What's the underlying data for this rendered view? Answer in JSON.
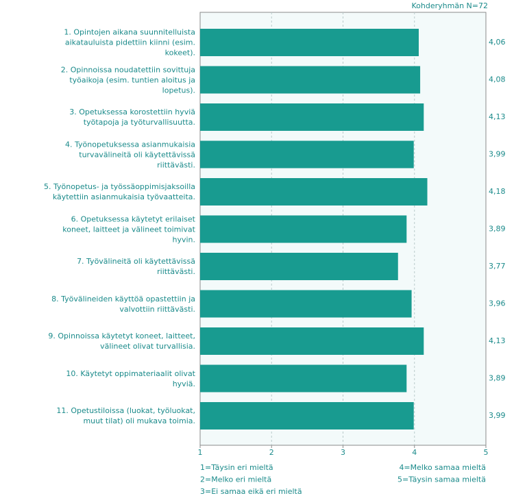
{
  "chart_data": {
    "type": "bar",
    "orientation": "horizontal",
    "subtitle": "Kohderyhmän N=72",
    "categories": [
      "1. Opintojen aikana suunnitelluista aikatauluista pidettiin kiinni (esim. kokeet).",
      "2. Opinnoissa noudatettiin sovittuja työaikoja (esim. tuntien aloitus ja lopetus).",
      "3. Opetuksessa korostettiin hyviä työtapoja ja työturvallisuutta.",
      "4. Työnopetuksessa asianmukaisia turvavälineitä oli käytettävissä riittävästi.",
      "5. Työnopetus- ja työssäoppimisjaksoilla käytettiin asianmukaisia työvaatteita.",
      "6. Opetuksessa käytetyt erilaiset koneet, laitteet ja välineet toimivat hyvin.",
      "7. Työvälineitä oli käytettävissä riittävästi.",
      "8. Työvälineiden käyttöä opastettiin ja valvottiin riittävästi.",
      "9. Opinnoissa käytetyt koneet, laitteet, välineet olivat turvallisia.",
      "10. Käytetyt oppimateriaalit olivat hyviä.",
      "11. Opetustiloissa (luokat, työluokat, muut tilat) oli mukava toimia."
    ],
    "values": [
      4.06,
      4.08,
      4.13,
      3.99,
      4.18,
      3.89,
      3.77,
      3.96,
      4.13,
      3.89,
      3.99
    ],
    "value_labels": [
      "4,06",
      "4,08",
      "4,13",
      "3,99",
      "4,18",
      "3,89",
      "3,77",
      "3,96",
      "4,13",
      "3,89",
      "3,99"
    ],
    "color": "#189b90",
    "xlim": [
      1,
      5
    ],
    "xticks": [
      1,
      2,
      3,
      4,
      5
    ],
    "grid": true,
    "scale_notes_left": [
      "1=Täysin eri mieltä",
      "2=Melko eri mieltä",
      "3=Ei samaa eikä eri mieltä"
    ],
    "scale_notes_right": [
      "4=Melko samaa mieltä",
      "5=Täysin samaa mieltä"
    ]
  }
}
